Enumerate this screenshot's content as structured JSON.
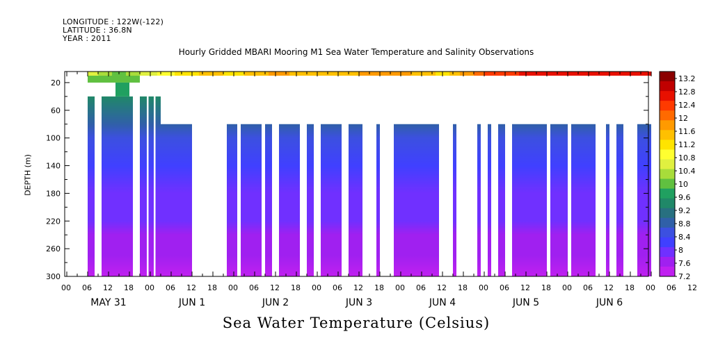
{
  "meta": {
    "longitude": "LONGITUDE : 122W(-122)",
    "latitude": "LATITUDE : 36.8N",
    "year": "YEAR : 2011"
  },
  "footer": "Sea Water Temperature (Celsius)",
  "chart_data": {
    "type": "heatmap",
    "title": "Hourly Gridded MBARI Mooring M1 Sea Water Temperature and Salinity Observations",
    "xlabel": "",
    "ylabel": "DEPTH (m)",
    "x_hour_ticks": [
      "00",
      "06",
      "12",
      "18",
      "00",
      "06",
      "12",
      "18",
      "00",
      "06",
      "12",
      "18",
      "00",
      "06",
      "12",
      "18",
      "00",
      "06",
      "12",
      "18",
      "00",
      "06",
      "12",
      "18",
      "00",
      "06",
      "12",
      "18",
      "00",
      "06",
      "12",
      "18"
    ],
    "x_day_labels": [
      "MAY 31",
      "JUN  1",
      "JUN  2",
      "JUN  3",
      "JUN  4",
      "JUN  5",
      "JUN  6"
    ],
    "x_range_hours": [
      0,
      168
    ],
    "ylim": [
      300,
      4
    ],
    "y_ticks": [
      20,
      60,
      100,
      140,
      180,
      220,
      260,
      300
    ],
    "colorbar": {
      "labels": [
        "13.2",
        "12.8",
        "12.4",
        "12",
        "11.6",
        "11.2",
        "10.8",
        "10.4",
        "10",
        "9.6",
        "9.2",
        "8.8",
        "8.4",
        "8",
        "7.6",
        "7.2"
      ],
      "colors": [
        "#8b0000",
        "#c00000",
        "#e81000",
        "#ff3a00",
        "#ff6a00",
        "#ff9a00",
        "#ffc000",
        "#ffe400",
        "#ffff30",
        "#e0f040",
        "#a8dc3a",
        "#60c040",
        "#20a060",
        "#208868",
        "#287080",
        "#3060a8",
        "#3c50e0",
        "#4040ff",
        "#7030ff",
        "#a020f0",
        "#c020f0"
      ]
    },
    "surface": {
      "depth": [
        4,
        10
      ],
      "temperatures": [
        [
          6,
          10.5
        ],
        [
          15,
          9.9
        ],
        [
          21,
          10.4
        ],
        [
          30,
          10.9
        ],
        [
          40,
          11.3
        ],
        [
          48,
          11.1
        ],
        [
          60,
          11.6
        ],
        [
          72,
          11.2
        ],
        [
          84,
          11.5
        ],
        [
          96,
          11.6
        ],
        [
          108,
          11.1
        ],
        [
          120,
          12.1
        ],
        [
          132,
          12.4
        ],
        [
          144,
          12.5
        ],
        [
          156,
          12.4
        ],
        [
          168,
          12.6
        ]
      ]
    },
    "upper_mixed": {
      "depth": [
        10,
        20
      ],
      "range_hours": [
        6,
        21
      ],
      "temperature": 9.8
    },
    "columns": [
      {
        "start": 6,
        "end": 8,
        "top": 40
      },
      {
        "start": 10,
        "end": 19,
        "top": 40
      },
      {
        "start": 21,
        "end": 23,
        "top": 40
      },
      {
        "start": 23.5,
        "end": 25,
        "top": 40
      },
      {
        "start": 25.5,
        "end": 27,
        "top": 40
      },
      {
        "start": 27,
        "end": 36,
        "top": 80
      },
      {
        "start": 46,
        "end": 49,
        "top": 80
      },
      {
        "start": 50,
        "end": 56,
        "top": 80
      },
      {
        "start": 57,
        "end": 59,
        "top": 80
      },
      {
        "start": 61,
        "end": 67,
        "top": 80
      },
      {
        "start": 69,
        "end": 71,
        "top": 80
      },
      {
        "start": 73,
        "end": 79,
        "top": 80
      },
      {
        "start": 81,
        "end": 85,
        "top": 80
      },
      {
        "start": 89,
        "end": 90,
        "top": 80
      },
      {
        "start": 94,
        "end": 107,
        "top": 80
      },
      {
        "start": 111,
        "end": 112,
        "top": 80
      },
      {
        "start": 118,
        "end": 119,
        "top": 80
      },
      {
        "start": 121,
        "end": 122,
        "top": 80
      },
      {
        "start": 124,
        "end": 126,
        "top": 80
      },
      {
        "start": 128,
        "end": 138,
        "top": 80
      },
      {
        "start": 139,
        "end": 144,
        "top": 80
      },
      {
        "start": 145,
        "end": 152,
        "top": 80
      },
      {
        "start": 155,
        "end": 156,
        "top": 80
      },
      {
        "start": 158,
        "end": 160,
        "top": 80
      },
      {
        "start": 164,
        "end": 168,
        "top": 80
      }
    ],
    "profile": [
      [
        40,
        9.4
      ],
      [
        80,
        8.8
      ],
      [
        100,
        8.6
      ],
      [
        140,
        8.3
      ],
      [
        180,
        8.0
      ],
      [
        220,
        7.9
      ],
      [
        240,
        7.7
      ],
      [
        270,
        7.5
      ],
      [
        300,
        7.3
      ]
    ]
  }
}
